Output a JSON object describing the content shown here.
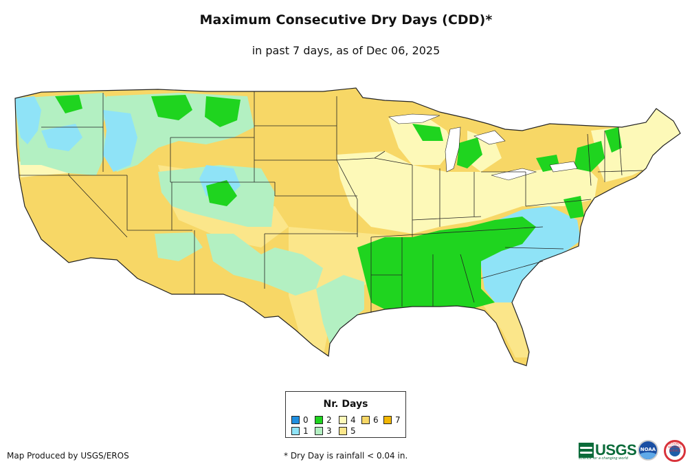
{
  "header": {
    "title": "Maximum Consecutive Dry Days (CDD)*",
    "subtitle": "in past 7 days, as of Dec 06, 2025"
  },
  "legend": {
    "title": "Nr. Days",
    "items": [
      {
        "label": "0",
        "color": "#1f8fe0"
      },
      {
        "label": "1",
        "color": "#8fe3f7"
      },
      {
        "label": "2",
        "color": "#1fd41f"
      },
      {
        "label": "3",
        "color": "#b3f0c2"
      },
      {
        "label": "4",
        "color": "#fdf9b8"
      },
      {
        "label": "5",
        "color": "#fbe68a"
      },
      {
        "label": "6",
        "color": "#f7d766"
      },
      {
        "label": "7",
        "color": "#f2b705"
      }
    ]
  },
  "footer": {
    "credit": "Map Produced by USGS/EROS",
    "note": "* Dry Day is rainfall < 0.04 in."
  },
  "logos": {
    "usgs": "USGS",
    "usgs_tagline": "science for a changing world",
    "noaa": "NOAA",
    "nws": "NATIONAL WEATHER SERVICE"
  },
  "map": {
    "region": "Contiguous United States",
    "background_color": "#f7d766",
    "boundary_color": "#222222"
  }
}
